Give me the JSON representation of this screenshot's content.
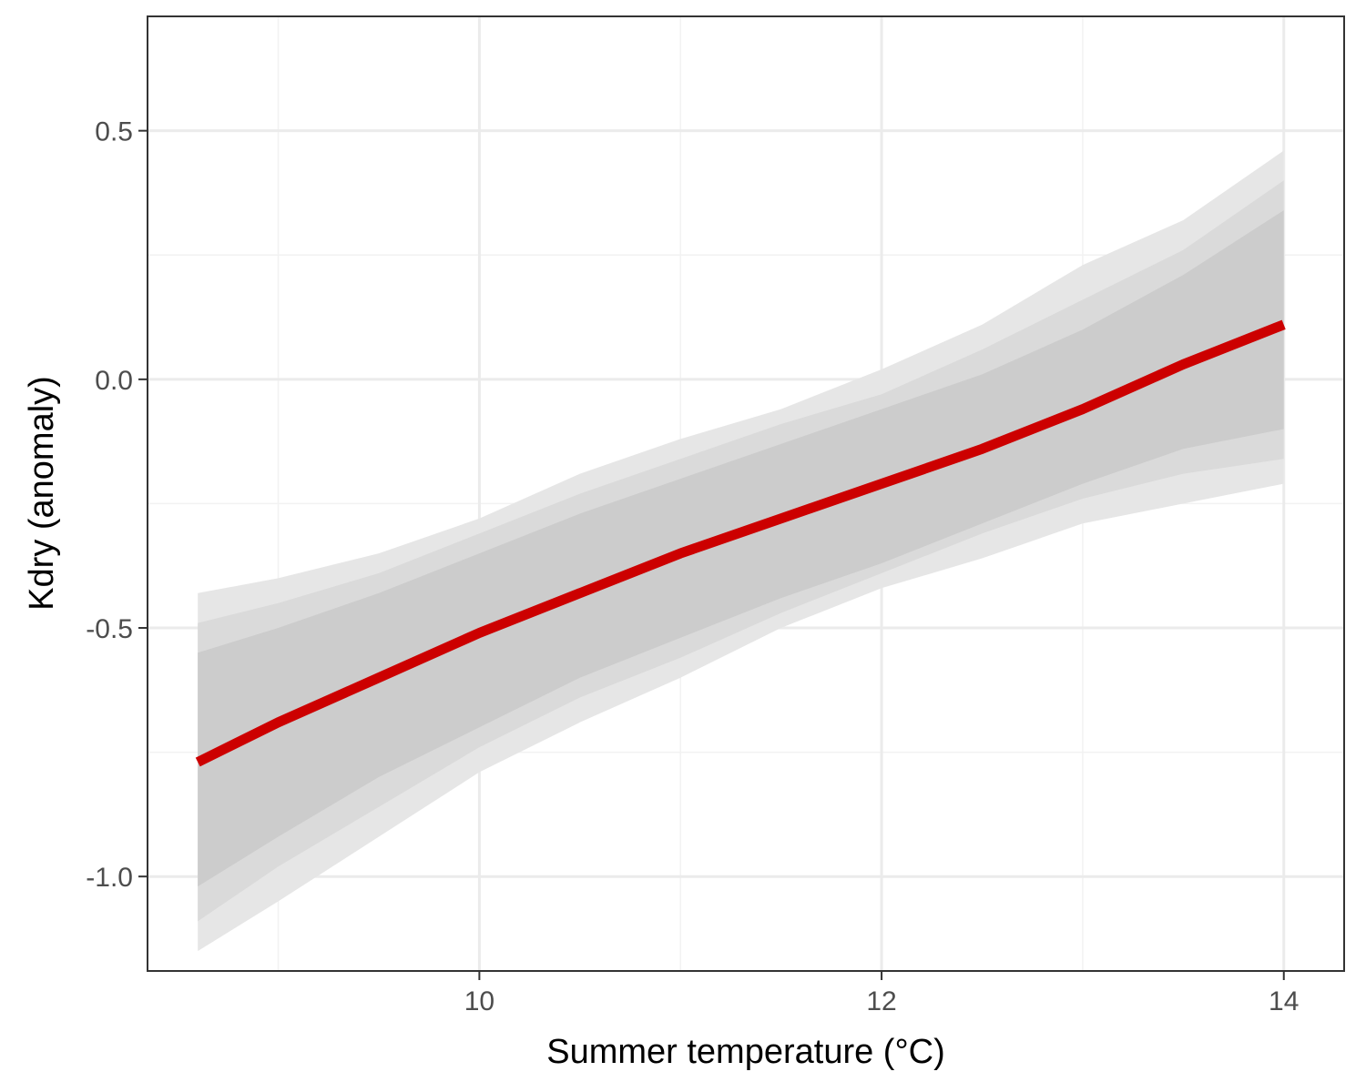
{
  "chart_data": {
    "type": "line",
    "title": "",
    "xlabel": "Summer temperature (°C)",
    "ylabel": "Kdry (anomaly)",
    "xlim": [
      8.35,
      14.3
    ],
    "ylim": [
      -1.19,
      0.73
    ],
    "x_ticks": [
      10,
      12,
      14
    ],
    "x_tick_labels": [
      "10",
      "12",
      "14"
    ],
    "y_ticks": [
      -1.0,
      -0.5,
      0.0,
      0.5
    ],
    "y_tick_labels": [
      "-1.0",
      "-0.5",
      "0.0",
      "0.5"
    ],
    "grid": true,
    "line_color": "#cc0000",
    "series": [
      {
        "x": [
          8.6,
          9.0,
          9.5,
          10.0,
          10.5,
          11.0,
          11.5,
          12.0,
          12.5,
          13.0,
          13.5,
          14.0
        ],
        "values": [
          -0.77,
          -0.69,
          -0.6,
          -0.51,
          -0.43,
          -0.35,
          -0.28,
          -0.21,
          -0.14,
          -0.06,
          0.03,
          0.11
        ]
      }
    ],
    "bands": [
      {
        "color": "#e6e6e6",
        "lower": [
          -1.15,
          -1.05,
          -0.92,
          -0.79,
          -0.69,
          -0.6,
          -0.5,
          -0.42,
          -0.36,
          -0.29,
          -0.25,
          -0.21
        ],
        "upper": [
          -0.43,
          -0.4,
          -0.35,
          -0.28,
          -0.19,
          -0.12,
          -0.06,
          0.02,
          0.11,
          0.23,
          0.32,
          0.46
        ]
      },
      {
        "color": "#dadada",
        "lower": [
          -1.09,
          -0.98,
          -0.86,
          -0.74,
          -0.64,
          -0.56,
          -0.47,
          -0.39,
          -0.31,
          -0.24,
          -0.19,
          -0.16
        ],
        "upper": [
          -0.49,
          -0.45,
          -0.39,
          -0.31,
          -0.23,
          -0.16,
          -0.09,
          -0.03,
          0.06,
          0.16,
          0.26,
          0.4
        ]
      },
      {
        "color": "#cccccc",
        "lower": [
          -1.02,
          -0.92,
          -0.8,
          -0.7,
          -0.6,
          -0.52,
          -0.44,
          -0.37,
          -0.29,
          -0.21,
          -0.14,
          -0.1
        ],
        "upper": [
          -0.55,
          -0.5,
          -0.43,
          -0.35,
          -0.27,
          -0.2,
          -0.13,
          -0.06,
          0.01,
          0.1,
          0.21,
          0.34
        ]
      }
    ]
  }
}
